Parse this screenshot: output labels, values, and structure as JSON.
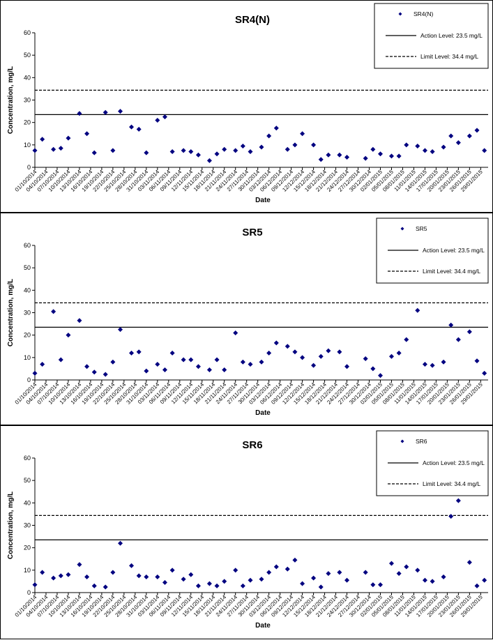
{
  "chart_data": [
    {
      "type": "scatter",
      "title": "SR4(N)",
      "x_label": "Date",
      "y_label": "Concentration, mg/L",
      "x": [
        "01/10/2014",
        "03/10/2014",
        "06/10/2014",
        "08/10/2014",
        "10/10/2014",
        "13/10/2014",
        "15/10/2014",
        "17/10/2014",
        "20/10/2014",
        "22/10/2014",
        "24/10/2014",
        "27/10/2014",
        "29/10/2014",
        "31/10/2014",
        "03/11/2014",
        "05/11/2014",
        "07/11/2014",
        "10/11/2014",
        "12/11/2014",
        "14/11/2014",
        "17/11/2014",
        "19/11/2014",
        "21/11/2014",
        "24/11/2014",
        "26/11/2014",
        "28/11/2014",
        "01/12/2014",
        "03/12/2014",
        "05/12/2014",
        "08/12/2014",
        "10/12/2014",
        "12/12/2014",
        "15/12/2014",
        "17/12/2014",
        "19/12/2014",
        "22/12/2014",
        "24/12/2014",
        "29/12/2014",
        "31/12/2014",
        "02/01/2015",
        "05/01/2015",
        "07/01/2015",
        "09/01/2015",
        "12/01/2015",
        "14/01/2015",
        "16/01/2015",
        "19/01/2015",
        "21/01/2015",
        "23/01/2015",
        "26/01/2015",
        "28/01/2015",
        "30/01/2015"
      ],
      "series": [
        {
          "name": "SR4(N)",
          "color": "#000080",
          "values": [
            7.5,
            12.5,
            8,
            8.5,
            13,
            24,
            15,
            6.5,
            24.5,
            7.5,
            25,
            18,
            17,
            6.5,
            21,
            22.5,
            7,
            7.5,
            7,
            5.5,
            3,
            6,
            8,
            7.5,
            9.5,
            7,
            9,
            14,
            17.5,
            8,
            10,
            15,
            10,
            3.5,
            5.5,
            5.5,
            4.5,
            4,
            8,
            6,
            5,
            5,
            10,
            9.5,
            7.5,
            7,
            9,
            14,
            11,
            14,
            16.5,
            7.5
          ]
        }
      ],
      "lines": [
        {
          "name": "Action Level: 23.5 mg/L",
          "value": 23.5,
          "style": "solid"
        },
        {
          "name": "Limit Level: 34.4 mg/L",
          "value": 34.4,
          "style": "dashed"
        }
      ],
      "xlim": [
        "01/10/2014",
        "31/01/2015"
      ],
      "ylim": [
        0,
        60
      ],
      "yticks": [
        0,
        10,
        20,
        30,
        40,
        50,
        60
      ],
      "xticks": [
        "01/10/2014",
        "04/10/2014",
        "07/10/2014",
        "10/10/2014",
        "13/10/2014",
        "16/10/2014",
        "19/10/2014",
        "22/10/2014",
        "25/10/2014",
        "28/10/2014",
        "31/10/2014",
        "03/11/2014",
        "06/11/2014",
        "09/11/2014",
        "12/11/2014",
        "15/11/2014",
        "18/11/2014",
        "21/11/2014",
        "24/11/2014",
        "27/11/2014",
        "30/11/2014",
        "03/12/2014",
        "06/12/2014",
        "09/12/2014",
        "12/12/2014",
        "15/12/2014",
        "18/12/2014",
        "21/12/2014",
        "24/12/2014",
        "27/12/2014",
        "30/12/2014",
        "02/01/2015",
        "05/01/2015",
        "08/01/2015",
        "11/01/2015",
        "14/01/2015",
        "17/01/2015",
        "20/01/2015",
        "23/01/2015",
        "26/01/2015",
        "29/01/2015"
      ]
    },
    {
      "type": "scatter",
      "title": "SR5",
      "x_label": "Date",
      "y_label": "Concentration, mg/L",
      "x": [
        "01/10/2014",
        "03/10/2014",
        "06/10/2014",
        "08/10/2014",
        "10/10/2014",
        "13/10/2014",
        "15/10/2014",
        "17/10/2014",
        "20/10/2014",
        "22/10/2014",
        "24/10/2014",
        "27/10/2014",
        "29/10/2014",
        "31/10/2014",
        "03/11/2014",
        "05/11/2014",
        "07/11/2014",
        "10/11/2014",
        "12/11/2014",
        "14/11/2014",
        "17/11/2014",
        "19/11/2014",
        "21/11/2014",
        "24/11/2014",
        "26/11/2014",
        "28/11/2014",
        "01/12/2014",
        "03/12/2014",
        "05/12/2014",
        "08/12/2014",
        "10/12/2014",
        "12/12/2014",
        "15/12/2014",
        "17/12/2014",
        "19/12/2014",
        "22/12/2014",
        "24/12/2014",
        "29/12/2014",
        "31/12/2014",
        "02/01/2015",
        "05/01/2015",
        "07/01/2015",
        "09/01/2015",
        "12/01/2015",
        "14/01/2015",
        "16/01/2015",
        "19/01/2015",
        "21/01/2015",
        "23/01/2015",
        "26/01/2015",
        "28/01/2015",
        "30/01/2015"
      ],
      "series": [
        {
          "name": "SR5",
          "color": "#000080",
          "values": [
            3,
            7,
            30.5,
            9,
            20,
            26.5,
            6,
            3.5,
            2.5,
            8,
            22.5,
            12,
            12.5,
            4,
            7,
            4.5,
            12,
            9,
            9,
            6,
            4.5,
            9,
            4.5,
            21,
            8,
            7,
            8,
            12,
            16.5,
            15,
            12.5,
            10,
            6.5,
            10.5,
            13,
            12.5,
            6,
            9.5,
            5,
            2,
            10.5,
            12,
            18,
            31,
            7,
            6.5,
            8,
            24.5,
            18,
            21.5,
            8.5,
            3
          ]
        }
      ],
      "lines": [
        {
          "name": "Action Level: 23.5 mg/L",
          "value": 23.5,
          "style": "solid"
        },
        {
          "name": "Limit Level: 34.4 mg/L",
          "value": 34.4,
          "style": "dashed"
        }
      ],
      "xlim": [
        "01/10/2014",
        "31/01/2015"
      ],
      "ylim": [
        0,
        60
      ],
      "yticks": [
        0,
        10,
        20,
        30,
        40,
        50,
        60
      ],
      "xticks": [
        "01/10/2014",
        "04/10/2014",
        "07/10/2014",
        "10/10/2014",
        "13/10/2014",
        "16/10/2014",
        "19/10/2014",
        "22/10/2014",
        "25/10/2014",
        "28/10/2014",
        "31/10/2014",
        "03/11/2014",
        "06/11/2014",
        "09/11/2014",
        "12/11/2014",
        "15/11/2014",
        "18/11/2014",
        "21/11/2014",
        "24/11/2014",
        "27/11/2014",
        "30/11/2014",
        "03/12/2014",
        "06/12/2014",
        "09/12/2014",
        "12/12/2014",
        "15/12/2014",
        "18/12/2014",
        "21/12/2014",
        "24/12/2014",
        "27/12/2014",
        "30/12/2014",
        "02/01/2015",
        "05/01/2015",
        "08/01/2015",
        "11/01/2015",
        "14/01/2015",
        "17/01/2015",
        "20/01/2015",
        "23/01/2015",
        "26/01/2015",
        "29/01/2015"
      ]
    },
    {
      "type": "scatter",
      "title": "SR6",
      "x_label": "Date",
      "y_label": "Concentration, mg/L",
      "x": [
        "01/10/2014",
        "03/10/2014",
        "06/10/2014",
        "08/10/2014",
        "10/10/2014",
        "13/10/2014",
        "15/10/2014",
        "17/10/2014",
        "20/10/2014",
        "22/10/2014",
        "24/10/2014",
        "27/10/2014",
        "29/10/2014",
        "31/10/2014",
        "03/11/2014",
        "05/11/2014",
        "07/11/2014",
        "10/11/2014",
        "12/11/2014",
        "14/11/2014",
        "17/11/2014",
        "19/11/2014",
        "21/11/2014",
        "24/11/2014",
        "26/11/2014",
        "28/11/2014",
        "01/12/2014",
        "03/12/2014",
        "05/12/2014",
        "08/12/2014",
        "10/12/2014",
        "12/12/2014",
        "15/12/2014",
        "17/12/2014",
        "19/12/2014",
        "22/12/2014",
        "24/12/2014",
        "29/12/2014",
        "31/12/2014",
        "02/01/2015",
        "05/01/2015",
        "07/01/2015",
        "09/01/2015",
        "12/01/2015",
        "14/01/2015",
        "16/01/2015",
        "19/01/2015",
        "21/01/2015",
        "23/01/2015",
        "26/01/2015",
        "28/01/2015",
        "30/01/2015"
      ],
      "series": [
        {
          "name": "SR6",
          "color": "#000080",
          "values": [
            3.5,
            9,
            6.5,
            7.5,
            8,
            12.5,
            7,
            3,
            2.5,
            9,
            22,
            12,
            7.5,
            7,
            7,
            4.5,
            10,
            6,
            8,
            3,
            4,
            3,
            5,
            10,
            3,
            5.5,
            6,
            9,
            11.5,
            10.5,
            14.5,
            4,
            6.5,
            2.5,
            8.5,
            9,
            5.5,
            9,
            3.5,
            3.5,
            13,
            8.5,
            11.5,
            10,
            5.5,
            5,
            7,
            34,
            41,
            13.5,
            3,
            5.5
          ]
        }
      ],
      "lines": [
        {
          "name": "Action Level: 23.5 mg/L",
          "value": 23.5,
          "style": "solid"
        },
        {
          "name": "Limit Level: 34.4 mg/L",
          "value": 34.4,
          "style": "dashed"
        }
      ],
      "xlim": [
        "01/10/2014",
        "31/01/2015"
      ],
      "ylim": [
        0,
        60
      ],
      "yticks": [
        0,
        10,
        20,
        30,
        40,
        50,
        60
      ],
      "xticks": [
        "01/10/2014",
        "04/10/2014",
        "07/10/2014",
        "10/10/2014",
        "13/10/2014",
        "16/10/2014",
        "19/10/2014",
        "22/10/2014",
        "25/10/2014",
        "28/10/2014",
        "31/10/2014",
        "03/11/2014",
        "06/11/2014",
        "09/11/2014",
        "12/11/2014",
        "15/11/2014",
        "18/11/2014",
        "21/11/2014",
        "24/11/2014",
        "27/11/2014",
        "30/11/2014",
        "03/12/2014",
        "06/12/2014",
        "09/12/2014",
        "12/12/2014",
        "15/12/2014",
        "18/12/2014",
        "21/12/2014",
        "24/12/2014",
        "27/12/2014",
        "30/12/2014",
        "02/01/2015",
        "05/01/2015",
        "08/01/2015",
        "11/01/2015",
        "14/01/2015",
        "17/01/2015",
        "20/01/2015",
        "23/01/2015",
        "26/01/2015",
        "29/01/2015"
      ]
    }
  ]
}
